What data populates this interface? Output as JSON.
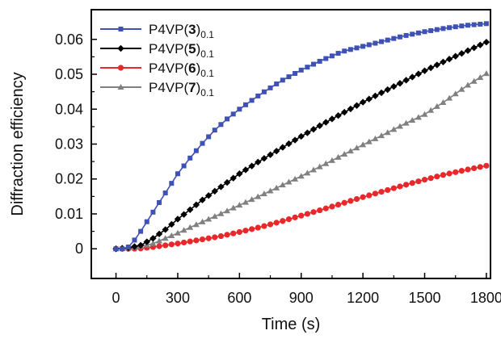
{
  "chart_data": {
    "type": "line",
    "xlabel": "Time (s)",
    "ylabel": "Diffraction efficiency",
    "xlim": [
      -120,
      1820
    ],
    "ylim": [
      -0.0085,
      0.0685
    ],
    "xticks": [
      0,
      300,
      600,
      900,
      1200,
      1500,
      1800
    ],
    "yticks": [
      0,
      0.01,
      0.02,
      0.03,
      0.04,
      0.05,
      0.06
    ],
    "xtick_labels": [
      "0",
      "300",
      "600",
      "900",
      "1200",
      "1500",
      "1800"
    ],
    "ytick_labels": [
      "0",
      "0.01",
      "0.02",
      "0.03",
      "0.04",
      "0.05",
      "0.06"
    ],
    "grid": false,
    "legend_position": "top-left",
    "x_step": 30,
    "series": [
      {
        "name": "P4VP(3)0.1",
        "label_prefix": "P4VP(",
        "label_bold": "3",
        "label_suffix": ")",
        "label_subscript": "0.1",
        "color": "#3f51b5",
        "marker": "square",
        "anchors": [
          [
            0,
            0
          ],
          [
            30,
            0
          ],
          [
            60,
            0.0005
          ],
          [
            90,
            0.0025
          ],
          [
            120,
            0.005
          ],
          [
            180,
            0.0105
          ],
          [
            240,
            0.016
          ],
          [
            300,
            0.0215
          ],
          [
            360,
            0.026
          ],
          [
            420,
            0.0302
          ],
          [
            480,
            0.034
          ],
          [
            540,
            0.0372
          ],
          [
            600,
            0.04
          ],
          [
            700,
            0.0442
          ],
          [
            800,
            0.048
          ],
          [
            900,
            0.0512
          ],
          [
            1000,
            0.054
          ],
          [
            1100,
            0.0565
          ],
          [
            1200,
            0.058
          ],
          [
            1300,
            0.0595
          ],
          [
            1400,
            0.061
          ],
          [
            1500,
            0.0622
          ],
          [
            1600,
            0.0632
          ],
          [
            1700,
            0.064
          ],
          [
            1800,
            0.0645
          ]
        ]
      },
      {
        "name": "P4VP(5)0.1",
        "label_prefix": "P4VP(",
        "label_bold": "5",
        "label_suffix": ")",
        "label_subscript": "0.1",
        "color": "#000000",
        "marker": "diamond",
        "anchors": [
          [
            0,
            0
          ],
          [
            60,
            0.0003
          ],
          [
            120,
            0.001
          ],
          [
            180,
            0.003
          ],
          [
            240,
            0.0055
          ],
          [
            300,
            0.0085
          ],
          [
            360,
            0.0112
          ],
          [
            420,
            0.014
          ],
          [
            480,
            0.0165
          ],
          [
            540,
            0.019
          ],
          [
            600,
            0.0215
          ],
          [
            700,
            0.0252
          ],
          [
            800,
            0.0287
          ],
          [
            900,
            0.0322
          ],
          [
            1000,
            0.0356
          ],
          [
            1100,
            0.0388
          ],
          [
            1200,
            0.042
          ],
          [
            1300,
            0.045
          ],
          [
            1400,
            0.048
          ],
          [
            1500,
            0.051
          ],
          [
            1600,
            0.0538
          ],
          [
            1700,
            0.0565
          ],
          [
            1800,
            0.0592
          ]
        ]
      },
      {
        "name": "P4VP(6)0.1",
        "label_prefix": "P4VP(",
        "label_bold": "6",
        "label_suffix": ")",
        "label_subscript": "0.1",
        "color": "#e8282b",
        "marker": "circle",
        "anchors": [
          [
            0,
            0
          ],
          [
            60,
            0
          ],
          [
            120,
            0.0001
          ],
          [
            180,
            0.0005
          ],
          [
            240,
            0.001
          ],
          [
            300,
            0.0015
          ],
          [
            400,
            0.0025
          ],
          [
            500,
            0.0035
          ],
          [
            600,
            0.0048
          ],
          [
            700,
            0.0062
          ],
          [
            800,
            0.0078
          ],
          [
            900,
            0.0095
          ],
          [
            1000,
            0.0112
          ],
          [
            1100,
            0.013
          ],
          [
            1200,
            0.0148
          ],
          [
            1300,
            0.0165
          ],
          [
            1400,
            0.0182
          ],
          [
            1500,
            0.0198
          ],
          [
            1600,
            0.0213
          ],
          [
            1700,
            0.0226
          ],
          [
            1800,
            0.0238
          ]
        ]
      },
      {
        "name": "P4VP(7)0.1",
        "label_prefix": "P4VP(",
        "label_bold": "7",
        "label_suffix": ")",
        "label_subscript": "0.1",
        "color": "#808080",
        "marker": "triangle",
        "anchors": [
          [
            0,
            0
          ],
          [
            60,
            0.0002
          ],
          [
            120,
            0.0007
          ],
          [
            180,
            0.0015
          ],
          [
            240,
            0.003
          ],
          [
            300,
            0.0045
          ],
          [
            400,
            0.0072
          ],
          [
            500,
            0.0098
          ],
          [
            600,
            0.0125
          ],
          [
            700,
            0.0152
          ],
          [
            800,
            0.018
          ],
          [
            900,
            0.0208
          ],
          [
            1000,
            0.0238
          ],
          [
            1100,
            0.0268
          ],
          [
            1200,
            0.0298
          ],
          [
            1300,
            0.0327
          ],
          [
            1400,
            0.0357
          ],
          [
            1500,
            0.0385
          ],
          [
            1600,
            0.0423
          ],
          [
            1700,
            0.0465
          ],
          [
            1800,
            0.0502
          ]
        ]
      }
    ]
  }
}
